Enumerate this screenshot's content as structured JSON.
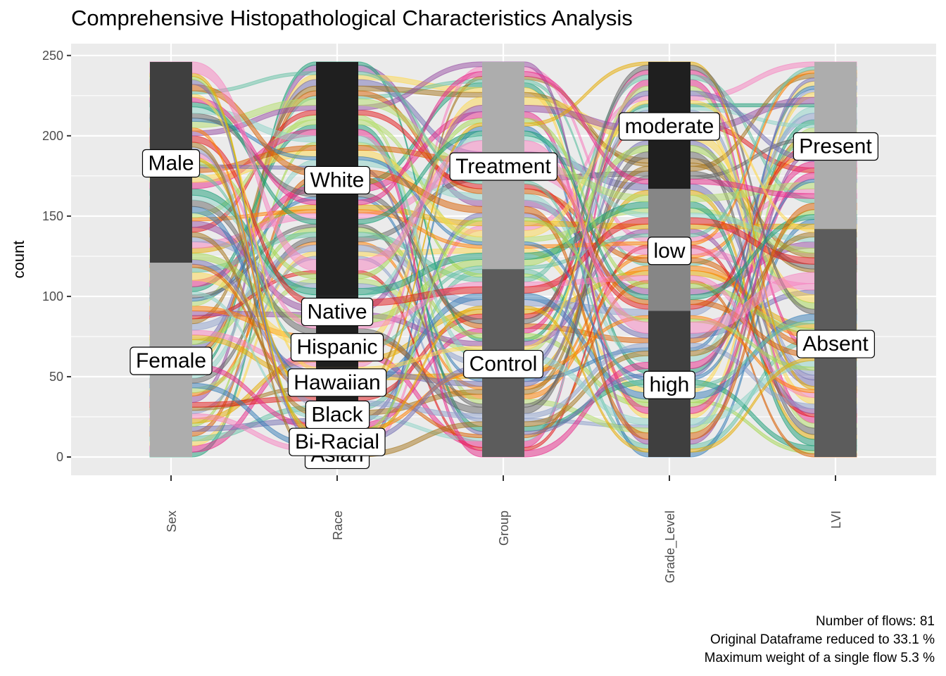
{
  "chart_data": {
    "type": "alluvial",
    "title": "Comprehensive Histopathological Characteristics Analysis",
    "xlabel": "",
    "ylabel": "count",
    "ylim": [
      -13,
      262
    ],
    "y_ticks": [
      0,
      50,
      100,
      150,
      200,
      250
    ],
    "grid": true,
    "axes": [
      "Sex",
      "Race",
      "Group",
      "Grade_Level",
      "LVI"
    ],
    "strata": {
      "Sex": [
        {
          "label": "Female",
          "count": 121,
          "color": "#adadad"
        },
        {
          "label": "Male",
          "count": 125,
          "color": "#3f3f3f"
        }
      ],
      "Race": [
        {
          "label": "Asian",
          "count": 4,
          "color": "#1f1f1f"
        },
        {
          "label": "Bi-Racial",
          "count": 12,
          "color": "#1f1f1f"
        },
        {
          "label": "Black",
          "count": 22,
          "color": "#1f1f1f"
        },
        {
          "label": "Hawaiian",
          "count": 18,
          "color": "#1f1f1f"
        },
        {
          "label": "Hispanic",
          "count": 26,
          "color": "#1f1f1f"
        },
        {
          "label": "Native",
          "count": 18,
          "color": "#1f1f1f"
        },
        {
          "label": "White",
          "count": 146,
          "color": "#1f1f1f"
        }
      ],
      "Group": [
        {
          "label": "Control",
          "count": 117,
          "color": "#5c5c5c"
        },
        {
          "label": "Treatment",
          "count": 129,
          "color": "#adadad"
        }
      ],
      "Grade_Level": [
        {
          "label": "high",
          "count": 91,
          "color": "#3f3f3f"
        },
        {
          "label": "low",
          "count": 76,
          "color": "#868686"
        },
        {
          "label": "moderate",
          "count": 79,
          "color": "#1f1f1f"
        }
      ],
      "LVI": [
        {
          "label": "Absent",
          "count": 142,
          "color": "#5c5c5c"
        },
        {
          "label": "Present",
          "count": 104,
          "color": "#adadad"
        }
      ]
    },
    "caption": [
      "Number of flows: 81",
      "Original Dataframe reduced to 33.1 %",
      "Maximum weight of a single flow 5.3 %"
    ],
    "flow_palette": [
      "#1b9e77",
      "#e7298a",
      "#fdd84d",
      "#66c2a5",
      "#d95f02",
      "#7570b3",
      "#a6d854",
      "#e6ab02",
      "#f781bf",
      "#8da0cb",
      "#a6761d",
      "#e41a1c",
      "#984ea3",
      "#ff7f00",
      "#b3de69",
      "#377eb8",
      "#666666",
      "#8dd3c7"
    ]
  }
}
